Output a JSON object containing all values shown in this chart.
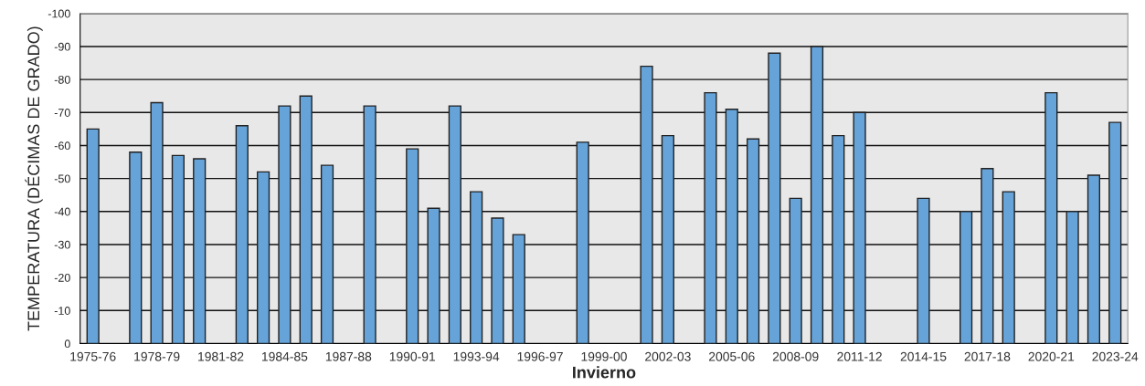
{
  "chart_data": {
    "type": "bar",
    "xlabel": "Invierno",
    "ylabel": "TEMPERATURA (DÉCIMAS DE GRADO)",
    "categories": [
      "1975-76",
      null,
      null,
      "1978-79",
      null,
      null,
      "1981-82",
      null,
      null,
      "1984-85",
      null,
      null,
      "1987-88",
      null,
      null,
      "1990-91",
      null,
      null,
      "1993-94",
      null,
      null,
      "1996-97",
      null,
      null,
      "1999-00",
      null,
      null,
      "2002-03",
      null,
      null,
      "2005-06",
      null,
      null,
      "2008-09",
      null,
      null,
      "2011-12",
      null,
      null,
      "2014-15",
      null,
      null,
      "2017-18",
      null,
      null,
      "2020-21",
      null,
      null,
      "2023-24"
    ],
    "values": [
      -65,
      null,
      -58,
      -73,
      -57,
      -56,
      null,
      -66,
      -52,
      -72,
      -75,
      -54,
      null,
      -72,
      null,
      -59,
      -41,
      -72,
      -46,
      -38,
      -33,
      null,
      null,
      -61,
      null,
      null,
      -84,
      -63,
      null,
      -76,
      -71,
      -62,
      -88,
      -44,
      -90,
      -63,
      -70,
      null,
      null,
      -44,
      null,
      -40,
      -53,
      -46,
      null,
      -76,
      -40,
      -51,
      -67
    ],
    "color": "#65a3d9",
    "ylim": [
      0,
      -100
    ],
    "yticks": [
      0,
      -10,
      -20,
      -30,
      -40,
      -50,
      -60,
      -70,
      -80,
      -90,
      -100
    ],
    "grid": "y"
  }
}
